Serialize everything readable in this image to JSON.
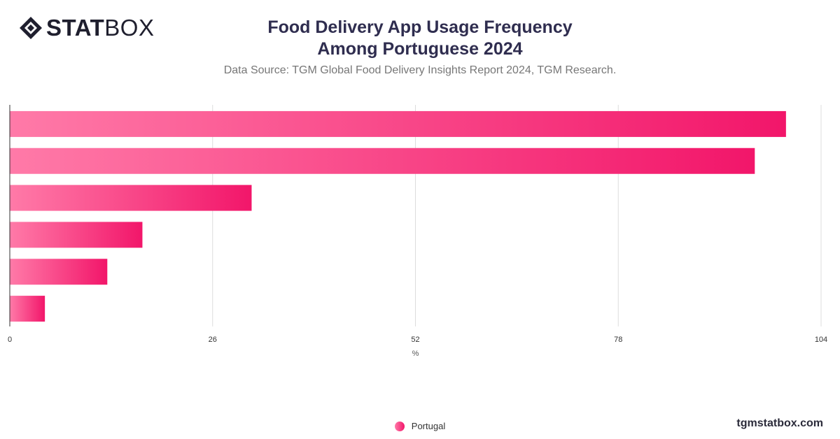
{
  "brand": {
    "logo_bold": "STAT",
    "logo_light": "BOX",
    "logo_icon": "statbox-diamond-icon",
    "website": "tgmstatbox.com"
  },
  "header": {
    "title_line1": "Food Delivery App Usage Frequency",
    "title_line2": "Among Portuguese 2024",
    "subtitle": "Data Source: TGM Global Food Delivery Insights Report 2024, TGM Research."
  },
  "colors": {
    "bar_start": "#ff7aa8",
    "bar_end": "#f2166a",
    "grid": "#dddddd",
    "axis": "#333333"
  },
  "chart_data": {
    "type": "bar",
    "orientation": "horizontal",
    "categories": [
      "",
      "",
      "",
      "",
      "",
      ""
    ],
    "series": [
      {
        "name": "Portugal",
        "values": [
          99.5,
          95.5,
          31,
          17,
          12.5,
          4.5
        ]
      }
    ],
    "title": "Food Delivery App Usage Frequency Among Portuguese 2024",
    "xlabel": "%",
    "ylabel": "",
    "xlim": [
      0,
      104
    ],
    "xticks": [
      "0",
      "26",
      "52",
      "78",
      "104"
    ],
    "grid": true,
    "legend": "bottom-center"
  }
}
